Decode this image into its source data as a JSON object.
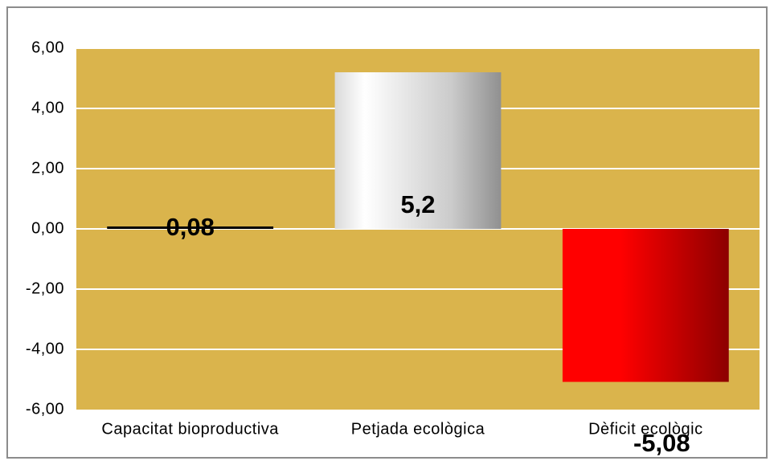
{
  "chart_data": {
    "type": "bar",
    "categories": [
      "Capacitat bioproductiva",
      "Petjada ecològica",
      "Dèficit ecològic"
    ],
    "values": [
      0.08,
      5.2,
      -5.08
    ],
    "value_labels": [
      "0,08",
      "5,2",
      "-5,08"
    ],
    "colors": [
      "#000000",
      "#b4b4b4",
      "#ff0000"
    ],
    "plot_background": "#dab44c",
    "ylim": [
      -6,
      6
    ],
    "yticks": [
      {
        "value": -6,
        "label": "-6,00"
      },
      {
        "value": -4,
        "label": "-4,00"
      },
      {
        "value": -2,
        "label": "-2,00"
      },
      {
        "value": 0,
        "label": "0,00"
      },
      {
        "value": 2,
        "label": "2,00"
      },
      {
        "value": 4,
        "label": "4,00"
      },
      {
        "value": 6,
        "label": "6,00"
      }
    ],
    "grid": true
  }
}
